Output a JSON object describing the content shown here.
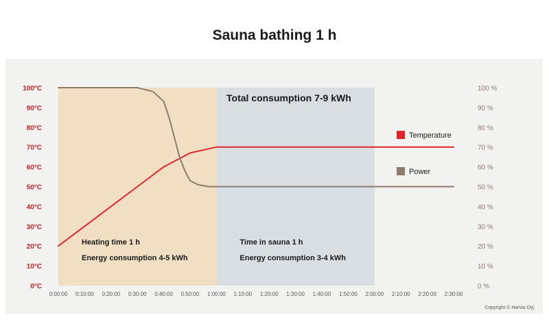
{
  "chart_data": {
    "type": "line",
    "title": "Sauna bathing 1 h",
    "x_ticks": [
      "0:00:00",
      "0:10:00",
      "0:20:00",
      "0:30:00",
      "0:40:00",
      "0:50:00",
      "1:00:00",
      "1:10:00",
      "1:20:00",
      "1:30:00",
      "1:40:00",
      "1:50:00",
      "2:00:00",
      "2:10:00",
      "2:20:00",
      "2:30:00"
    ],
    "x_range_minutes": [
      0,
      150
    ],
    "y_left": {
      "ticks": [
        "0°C",
        "10°C",
        "20°C",
        "30°C",
        "40°C",
        "50°C",
        "60°C",
        "70°C",
        "80°C",
        "90°C",
        "100°C"
      ],
      "ylim": [
        0,
        100
      ],
      "color": "#c8202a"
    },
    "y_right": {
      "ticks": [
        "0 %",
        "10 %",
        "20 %",
        "30 %",
        "40 %",
        "50 %",
        "60 %",
        "70 %",
        "80 %",
        "90 %",
        "100 %"
      ],
      "ylim": [
        0,
        100
      ],
      "color": "#8d7b6b"
    },
    "regions": [
      {
        "from_min": 0,
        "to_min": 60,
        "color": "#f1dfc3",
        "lines": [
          "Heating time 1 h",
          "Energy consumption 4-5 kWh"
        ]
      },
      {
        "from_min": 60,
        "to_min": 120,
        "color": "#d9dee2",
        "lines": [
          "Time in sauna 1 h",
          "Energy consumption 3-4 kWh"
        ]
      }
    ],
    "total_label": "Total consumption 7-9 kWh",
    "series": [
      {
        "name": "Temperature",
        "axis": "left",
        "color": "#e0262b",
        "points": [
          [
            0,
            20
          ],
          [
            10,
            30
          ],
          [
            20,
            40
          ],
          [
            30,
            50
          ],
          [
            40,
            60
          ],
          [
            50,
            67
          ],
          [
            60,
            70
          ],
          [
            90,
            70
          ],
          [
            120,
            70
          ],
          [
            150,
            70
          ]
        ]
      },
      {
        "name": "Power",
        "axis": "right",
        "color": "#8d7b6b",
        "points": [
          [
            0,
            100
          ],
          [
            20,
            100
          ],
          [
            30,
            100
          ],
          [
            36,
            98
          ],
          [
            40,
            93
          ],
          [
            42,
            85
          ],
          [
            44,
            75
          ],
          [
            46,
            65
          ],
          [
            48,
            58
          ],
          [
            50,
            53
          ],
          [
            53,
            51
          ],
          [
            57,
            50
          ],
          [
            60,
            50
          ],
          [
            90,
            50
          ],
          [
            120,
            50
          ],
          [
            150,
            50
          ]
        ]
      }
    ],
    "legend": {
      "position": "right"
    },
    "copyright": "Copyright © Harvia Oyj"
  }
}
